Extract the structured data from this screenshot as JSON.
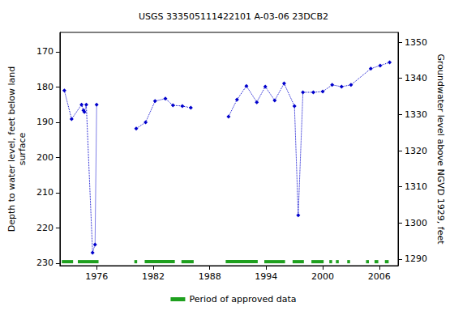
{
  "chart_data": {
    "type": "line",
    "title": "USGS 333505111422101 A-03-06 23DCB2",
    "y_label": "Depth to water level, feet below land\nsurface",
    "y2_label": "Groundwater level above NGVD 1929, feet",
    "x": [
      1972.57,
      1973.34,
      1974.4,
      1974.6,
      1974.7,
      1974.9,
      1975.57,
      1975.83,
      1976.0,
      null,
      1980.2,
      1981.2,
      1982.2,
      1983.3,
      1984.1,
      1985.1,
      1986.0,
      null,
      1990.0,
      1990.9,
      1991.9,
      1993.0,
      1993.9,
      1994.9,
      1995.9,
      1997.0,
      1997.4,
      1997.9,
      1999.0,
      2000.0,
      2001.0,
      2002.0,
      2003.0,
      2005.1,
      2006.1,
      2007.1
    ],
    "values": [
      181.0,
      189.1,
      185.0,
      186.6,
      187.1,
      185.0,
      227.0,
      224.7,
      185.0,
      null,
      191.8,
      190.0,
      184.0,
      183.3,
      185.2,
      185.4,
      185.9,
      null,
      188.4,
      183.6,
      179.7,
      184.3,
      179.9,
      183.8,
      179.0,
      185.4,
      216.4,
      181.5,
      181.5,
      181.3,
      179.4,
      179.9,
      179.4,
      174.8,
      173.9,
      173.0
    ],
    "color": "#0000cc",
    "marker": "diamond",
    "line_style": "dotted",
    "approved_periods": {
      "name": "Period of approved data",
      "color": "#1ea01e",
      "ranges": [
        [
          1972.3,
          1973.5
        ],
        [
          1974.0,
          1976.2
        ],
        [
          1980.0,
          1980.3
        ],
        [
          1981.1,
          1984.3
        ],
        [
          1985.0,
          1986.3
        ],
        [
          1989.7,
          1993.1
        ],
        [
          1993.8,
          1996.0
        ],
        [
          1996.8,
          1998.0
        ],
        [
          1998.8,
          2000.1
        ],
        [
          2000.7,
          2001.0
        ],
        [
          2001.4,
          2001.7
        ],
        [
          2002.6,
          2002.9
        ],
        [
          2004.6,
          2004.9
        ],
        [
          2005.5,
          2005.9
        ],
        [
          2006.6,
          2007.0
        ]
      ]
    },
    "xlim": [
      1972.1,
      2008.0
    ],
    "xticks": [
      1976,
      1982,
      1988,
      1994,
      2000,
      2006
    ],
    "ylim": [
      164.5,
      230.7
    ],
    "yticks": [
      170,
      180,
      190,
      200,
      210,
      220,
      230
    ],
    "y2lim": [
      1288.2,
      1352.7
    ],
    "y2ticks": [
      1290,
      1300,
      1310,
      1320,
      1330,
      1340,
      1350
    ],
    "legend": "bottom"
  }
}
